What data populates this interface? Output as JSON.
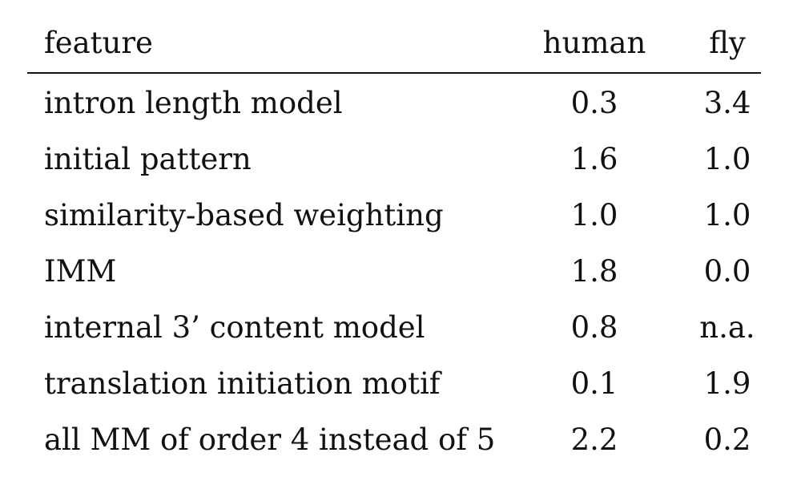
{
  "table": {
    "headers": {
      "feature": "feature",
      "human": "human",
      "fly": "fly"
    },
    "rows": [
      {
        "feature": "intron length model",
        "human": "0.3",
        "fly": "3.4"
      },
      {
        "feature": "initial pattern",
        "human": "1.6",
        "fly": "1.0"
      },
      {
        "feature": "similarity-based weighting",
        "human": "1.0",
        "fly": "1.0"
      },
      {
        "feature": "IMM",
        "human": "1.8",
        "fly": "0.0"
      },
      {
        "feature": "internal 3’ content model",
        "human": "0.8",
        "fly": "n.a."
      },
      {
        "feature": "translation initiation motif",
        "human": "0.1",
        "fly": "1.9"
      },
      {
        "feature": "all MM of order 4 instead of 5",
        "human": "2.2",
        "fly": "0.2"
      }
    ]
  }
}
